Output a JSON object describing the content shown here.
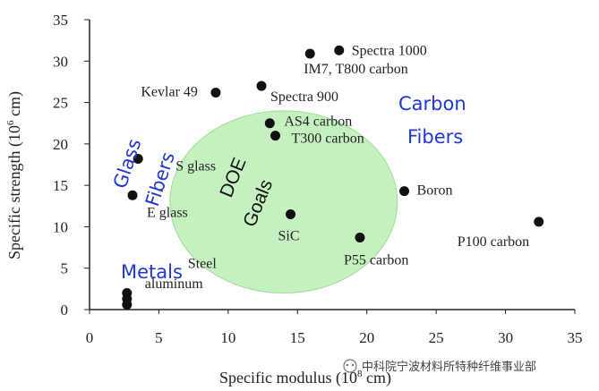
{
  "chart_data": {
    "type": "scatter",
    "xlabel": "Specific modulus (10",
    "xlabel_sup": "8",
    "xlabel_tail": " cm)",
    "ylabel": "Specific strength (10",
    "ylabel_sup": "6",
    "ylabel_tail": " cm)",
    "xlim": [
      0,
      35
    ],
    "ylim": [
      0,
      35
    ],
    "xticks": [
      "0",
      "5",
      "10",
      "15",
      "20",
      "25",
      "30",
      "35"
    ],
    "yticks": [
      "0",
      "5",
      "10",
      "15",
      "20",
      "25",
      "30",
      "35"
    ],
    "points": [
      {
        "x": 15.9,
        "y": 30.9,
        "label": ""
      },
      {
        "x": 18.0,
        "y": 31.3,
        "label": "Spectra 1000"
      },
      {
        "x": 9.1,
        "y": 26.2,
        "label": "Kevlar 49"
      },
      {
        "x": 12.4,
        "y": 27.0,
        "label": "Spectra 900"
      },
      {
        "x": 13.0,
        "y": 22.5,
        "label": "AS4 carbon"
      },
      {
        "x": 13.4,
        "y": 21.0,
        "label": "T300 carbon"
      },
      {
        "x": 3.5,
        "y": 18.2,
        "label": "S glass"
      },
      {
        "x": 3.1,
        "y": 13.8,
        "label": "E glass"
      },
      {
        "x": 14.5,
        "y": 11.5,
        "label": "SiC"
      },
      {
        "x": 22.7,
        "y": 14.3,
        "label": "Boron"
      },
      {
        "x": 32.4,
        "y": 10.6,
        "label": "P100 carbon"
      },
      {
        "x": 19.5,
        "y": 8.7,
        "label": "P55 carbon"
      },
      {
        "x": 2.7,
        "y": 2.0,
        "label": "Steel"
      },
      {
        "x": 2.7,
        "y": 1.3,
        "label": "aluminum"
      },
      {
        "x": 2.7,
        "y": 0.6,
        "label": ""
      }
    ],
    "extra_labels": {
      "im7": "IM7, T800 carbon"
    },
    "regions": [
      {
        "name": "DOE Goals",
        "cx": 14.0,
        "cy": 13.0,
        "rx": 8.2,
        "ry": 11.0,
        "color": "#b7eeb0"
      }
    ],
    "group_labels": {
      "carbon": [
        "Carbon",
        "Fibers"
      ],
      "glass": [
        "Glass",
        "Fibers"
      ],
      "metals": "Metals",
      "doe": [
        "DOE",
        "Goals"
      ]
    },
    "colors": {
      "point": "#111111",
      "group_label": "#1f37d6",
      "region": "#b7eeb0"
    }
  },
  "watermark": "中科院宁波材料所特种纤维事业部"
}
